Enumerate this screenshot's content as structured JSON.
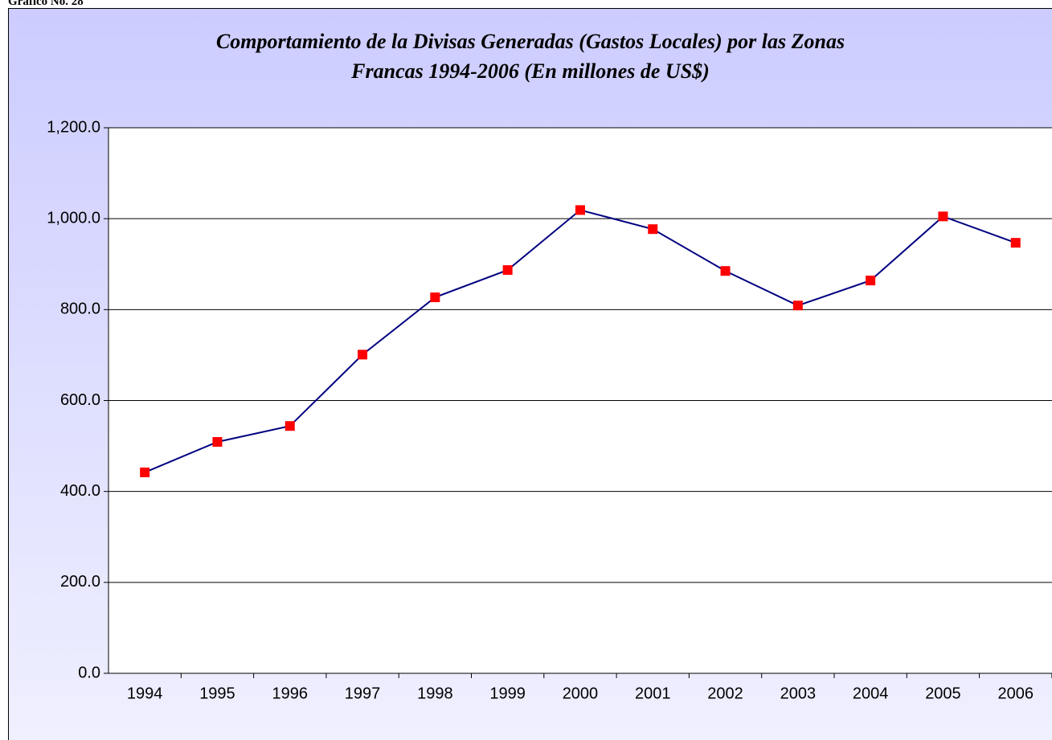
{
  "caption": "Gráfico No. 28",
  "chart_data": {
    "type": "line",
    "title": [
      "Comportamiento de la Divisas Generadas (Gastos Locales) por las Zonas",
      "Francas 1994-2006 (En millones de US$)"
    ],
    "categories": [
      "1994",
      "1995",
      "1996",
      "1997",
      "1998",
      "1999",
      "2000",
      "2001",
      "2002",
      "2003",
      "2004",
      "2005",
      "2006"
    ],
    "series": [
      {
        "color": "#000080",
        "marker_color": "#ff0000",
        "values": [
          442,
          509,
          544,
          701,
          827,
          887,
          1019,
          977,
          885,
          809,
          864,
          1005,
          947
        ]
      }
    ],
    "ylim": [
      0,
      1200
    ],
    "yticks": [
      {
        "value": 0,
        "label": "0.0"
      },
      {
        "value": 200,
        "label": "200.0"
      },
      {
        "value": 400,
        "label": "400.0"
      },
      {
        "value": 600,
        "label": "600.0"
      },
      {
        "value": 800,
        "label": "800.0"
      },
      {
        "value": 1000,
        "label": "1,000.0"
      },
      {
        "value": 1200,
        "label": "1,200.0"
      }
    ],
    "grid": true
  }
}
